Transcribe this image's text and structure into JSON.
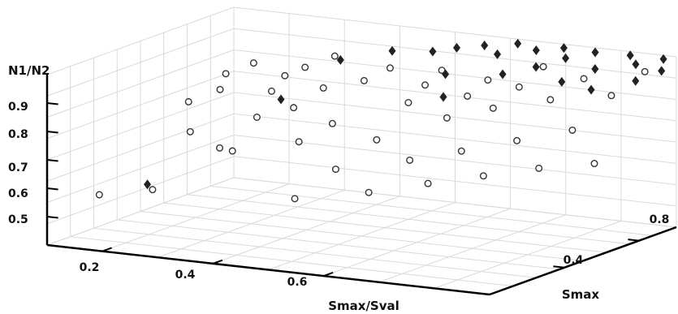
{
  "chart_data": {
    "type": "scatter",
    "dimensions": 3,
    "title": "",
    "xlabel": "Smax/Sval",
    "ylabel": "Smax",
    "zlabel": "N1/N2",
    "x_ticks": [
      "0.2",
      "0.4",
      "0.6"
    ],
    "y_ticks": [
      "0.4",
      "0.8"
    ],
    "z_ticks": [
      "0.5",
      "0.6",
      "0.7",
      "0.8",
      "0.9"
    ],
    "xlim": [
      0.1,
      0.9
    ],
    "ylim": [
      0.0,
      1.0
    ],
    "zlim": [
      0.4,
      1.0
    ],
    "grid": true,
    "marker_colors": {
      "circle": "#ffffff",
      "diamond": "#222222",
      "stroke": "#333333"
    },
    "series": [
      {
        "marker": "circle",
        "points": [
          [
            0.11,
            0.25,
            0.52
          ],
          [
            0.16,
            0.58,
            0.78
          ],
          [
            0.18,
            0.72,
            0.85
          ],
          [
            0.19,
            0.5,
            0.7
          ],
          [
            0.2,
            0.63,
            0.82
          ],
          [
            0.21,
            0.78,
            0.88
          ],
          [
            0.24,
            0.15,
            0.59
          ],
          [
            0.26,
            0.45,
            0.67
          ],
          [
            0.27,
            0.62,
            0.74
          ],
          [
            0.28,
            0.74,
            0.86
          ],
          [
            0.3,
            0.4,
            0.68
          ],
          [
            0.31,
            0.58,
            0.85
          ],
          [
            0.33,
            0.7,
            0.91
          ],
          [
            0.35,
            0.8,
            0.93
          ],
          [
            0.36,
            0.55,
            0.81
          ],
          [
            0.38,
            0.65,
            0.86
          ],
          [
            0.4,
            0.46,
            0.72
          ],
          [
            0.42,
            0.58,
            0.76
          ],
          [
            0.43,
            0.72,
            0.88
          ],
          [
            0.45,
            0.8,
            0.91
          ],
          [
            0.46,
            0.26,
            0.58
          ],
          [
            0.48,
            0.42,
            0.65
          ],
          [
            0.5,
            0.58,
            0.72
          ],
          [
            0.51,
            0.72,
            0.82
          ],
          [
            0.52,
            0.78,
            0.87
          ],
          [
            0.53,
            0.84,
            0.91
          ],
          [
            0.56,
            0.36,
            0.6
          ],
          [
            0.58,
            0.52,
            0.68
          ],
          [
            0.6,
            0.66,
            0.8
          ],
          [
            0.61,
            0.74,
            0.86
          ],
          [
            0.62,
            0.82,
            0.9
          ],
          [
            0.64,
            0.44,
            0.63
          ],
          [
            0.66,
            0.56,
            0.72
          ],
          [
            0.67,
            0.7,
            0.84
          ],
          [
            0.69,
            0.78,
            0.9
          ],
          [
            0.7,
            0.88,
            0.95
          ],
          [
            0.72,
            0.5,
            0.66
          ],
          [
            0.74,
            0.62,
            0.76
          ],
          [
            0.76,
            0.74,
            0.88
          ],
          [
            0.78,
            0.86,
            0.93
          ],
          [
            0.8,
            0.56,
            0.69
          ],
          [
            0.82,
            0.68,
            0.8
          ],
          [
            0.85,
            0.8,
            0.9
          ],
          [
            0.87,
            0.92,
            0.96
          ],
          [
            0.88,
            0.62,
            0.71
          ]
        ]
      },
      {
        "marker": "diamond",
        "points": [
          [
            0.18,
            0.3,
            0.56
          ],
          [
            0.3,
            0.66,
            0.8
          ],
          [
            0.34,
            0.86,
            0.9
          ],
          [
            0.42,
            0.9,
            0.94
          ],
          [
            0.5,
            0.88,
            0.96
          ],
          [
            0.53,
            0.92,
            0.97
          ],
          [
            0.55,
            0.8,
            0.91
          ],
          [
            0.57,
            0.95,
            0.98
          ],
          [
            0.58,
            0.7,
            0.86
          ],
          [
            0.6,
            0.93,
            0.96
          ],
          [
            0.62,
            0.98,
            0.99
          ],
          [
            0.64,
            0.84,
            0.92
          ],
          [
            0.66,
            0.96,
            0.98
          ],
          [
            0.68,
            0.9,
            0.94
          ],
          [
            0.7,
            0.99,
            0.99
          ],
          [
            0.72,
            0.94,
            0.97
          ],
          [
            0.74,
            0.86,
            0.91
          ],
          [
            0.76,
            0.98,
            0.99
          ],
          [
            0.78,
            0.92,
            0.95
          ],
          [
            0.8,
            0.84,
            0.9
          ],
          [
            0.82,
            0.99,
            0.99
          ],
          [
            0.84,
            0.96,
            0.97
          ],
          [
            0.86,
            0.9,
            0.93
          ],
          [
            0.88,
            0.99,
            0.99
          ],
          [
            0.89,
            0.95,
            0.96
          ]
        ]
      }
    ]
  }
}
